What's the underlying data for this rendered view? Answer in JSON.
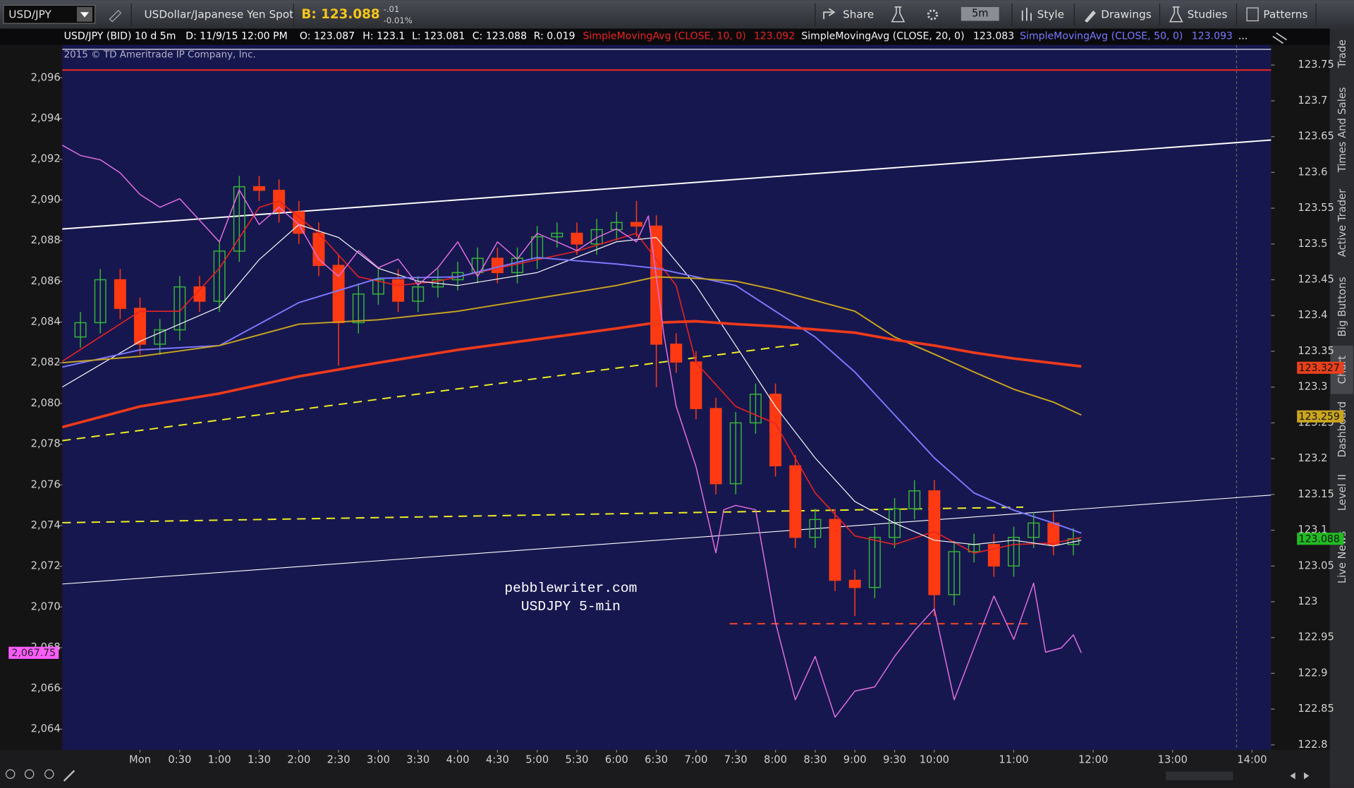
{
  "toolbar": {
    "symbol": "USD/JPY",
    "description": "USDollar/Japanese Yen Spot",
    "bid": "B: 123.088",
    "change": "-.01",
    "change_pct": "-0.01%",
    "timeframe": "5m",
    "buttons": [
      "Share",
      "Style",
      "Drawings",
      "Studies",
      "Patterns"
    ]
  },
  "side_tabs": [
    "Trade",
    "Times And Sales",
    "Active Trader",
    "Big Buttons",
    "Chart",
    "Dashboard",
    "Level II",
    "Live News"
  ],
  "active_tab": 4,
  "chart_data": {
    "type": "candlestick",
    "header": {
      "symbol": "USD/JPY (BID) 10 d 5m",
      "date": "D: 11/9/15 12:00 PM",
      "open": "O: 123.087",
      "high": "H: 123.1",
      "low": "L: 123.081",
      "close": "C: 123.088",
      "range": "R: 0.019",
      "more": "..."
    },
    "copyright": "2015 © TD Ameritrade IP Company, Inc.",
    "annotations": [
      "pebblewriter.com",
      "USDJPY 5-min"
    ],
    "up_color": "#36b536",
    "down_color": "#ff3a12",
    "x": [
      -0.75,
      -0.5,
      -0.25,
      0,
      0.25,
      0.5,
      0.75,
      1,
      1.25,
      1.5,
      1.75,
      2,
      2.25,
      2.5,
      2.75,
      3,
      3.25,
      3.5,
      3.75,
      4,
      4.25,
      4.5,
      4.75,
      5,
      5.25,
      5.5,
      5.75,
      6,
      6.25,
      6.5,
      6.75,
      7,
      7.25,
      7.5,
      7.75,
      8,
      8.25,
      8.5,
      8.75,
      9,
      9.25,
      9.5,
      9.75,
      10,
      10.25,
      10.5,
      10.75,
      11,
      11.25,
      11.5,
      11.75
    ],
    "open": [
      123.37,
      123.39,
      123.45,
      123.41,
      123.36,
      123.38,
      123.44,
      123.42,
      123.49,
      123.58,
      123.575,
      123.545,
      123.515,
      123.47,
      123.39,
      123.43,
      123.45,
      123.42,
      123.44,
      123.45,
      123.46,
      123.48,
      123.46,
      123.48,
      123.51,
      123.515,
      123.5,
      123.52,
      123.53,
      123.525,
      123.36,
      123.335,
      123.27,
      123.165,
      123.25,
      123.29,
      123.19,
      123.09,
      123.115,
      123.03,
      123.02,
      123.09,
      123.13,
      123.155,
      123.01,
      123.07,
      123.08,
      123.05,
      123.09,
      123.11,
      123.08
    ],
    "high": [
      123.405,
      123.465,
      123.465,
      123.425,
      123.395,
      123.455,
      123.455,
      123.505,
      123.595,
      123.595,
      123.59,
      123.56,
      123.53,
      123.485,
      123.445,
      123.465,
      123.465,
      123.455,
      123.465,
      123.475,
      123.495,
      123.495,
      123.495,
      123.525,
      123.53,
      123.53,
      123.535,
      123.545,
      123.56,
      123.54,
      123.375,
      123.35,
      123.285,
      123.265,
      123.305,
      123.305,
      123.205,
      123.13,
      123.13,
      123.045,
      123.105,
      123.145,
      123.17,
      123.17,
      123.085,
      123.095,
      123.095,
      123.105,
      123.125,
      123.125,
      123.103
    ],
    "low": [
      123.355,
      123.375,
      123.395,
      123.345,
      123.345,
      123.365,
      123.405,
      123.405,
      123.475,
      123.56,
      123.53,
      123.5,
      123.455,
      123.33,
      123.375,
      123.415,
      123.405,
      123.405,
      123.425,
      123.435,
      123.445,
      123.445,
      123.445,
      123.465,
      123.495,
      123.485,
      123.485,
      123.505,
      123.51,
      123.3,
      123.32,
      123.255,
      123.15,
      123.15,
      123.235,
      123.175,
      123.075,
      123.075,
      123.015,
      122.98,
      123.005,
      123.075,
      123.115,
      122.98,
      122.995,
      123.055,
      123.035,
      123.035,
      123.075,
      123.065,
      123.065
    ],
    "close": [
      123.39,
      123.45,
      123.41,
      123.36,
      123.38,
      123.44,
      123.42,
      123.49,
      123.58,
      123.575,
      123.545,
      123.515,
      123.47,
      123.39,
      123.43,
      123.45,
      123.42,
      123.44,
      123.45,
      123.46,
      123.48,
      123.46,
      123.48,
      123.51,
      123.515,
      123.5,
      123.52,
      123.53,
      123.525,
      123.36,
      123.335,
      123.27,
      123.165,
      123.25,
      123.29,
      123.19,
      123.09,
      123.115,
      123.03,
      123.02,
      123.09,
      123.13,
      123.155,
      123.01,
      123.07,
      123.08,
      123.05,
      123.09,
      123.11,
      123.08,
      123.088
    ],
    "series": [
      {
        "name": "SimpleMovingAvg (CLOSE, 10, 0)",
        "last": 123.092,
        "color": "#e82222",
        "width": 1.3,
        "x": [
          -0.98,
          0,
          0.5,
          1,
          1.5,
          1.75,
          2.25,
          2.75,
          3.25,
          3.75,
          4.5,
          5.5,
          6.25,
          6.75,
          7,
          7.5,
          8,
          8.5,
          9,
          9.5,
          10,
          10.5,
          11,
          11.5,
          11.85
        ],
        "values": [
          123.336,
          123.406,
          123.406,
          123.466,
          123.551,
          123.56,
          123.515,
          123.454,
          123.442,
          123.448,
          123.466,
          123.49,
          123.515,
          123.442,
          123.334,
          123.273,
          123.249,
          123.152,
          123.092,
          123.08,
          123.098,
          123.068,
          123.08,
          123.082,
          123.09
        ]
      },
      {
        "name": "SimpleMovingAvg (CLOSE, 20, 0)",
        "last": 123.083,
        "color": "#f4f4f4",
        "width": 1,
        "x": [
          -0.98,
          0,
          0.5,
          1,
          1.5,
          2,
          2.5,
          3,
          3.5,
          4,
          5,
          6,
          6.5,
          7,
          7.5,
          8,
          8.5,
          9,
          9.5,
          10,
          10.5,
          11,
          11.5,
          11.85
        ],
        "values": [
          123.3,
          123.364,
          123.388,
          123.412,
          123.478,
          123.527,
          123.509,
          123.466,
          123.448,
          123.442,
          123.46,
          123.503,
          123.509,
          123.442,
          123.358,
          123.273,
          123.201,
          123.14,
          123.11,
          123.086,
          123.08,
          123.086,
          123.078,
          123.086
        ]
      },
      {
        "name": "SimpleMovingAvg (CLOSE, 50, 0)",
        "last": 123.093,
        "color": "#7b78ff",
        "width": 1.6,
        "x": [
          -0.98,
          0,
          1,
          2,
          3,
          4,
          5,
          6,
          6.5,
          7,
          7.5,
          8,
          8.5,
          9,
          9.5,
          10,
          10.5,
          11,
          11.5,
          11.85
        ],
        "values": [
          123.328,
          123.352,
          123.358,
          123.418,
          123.452,
          123.454,
          123.481,
          123.472,
          123.466,
          123.454,
          123.442,
          123.406,
          123.37,
          123.321,
          123.261,
          123.201,
          123.152,
          123.128,
          123.11,
          123.096
        ]
      },
      {
        "color": "#c9a51e",
        "width": 1.6,
        "x": [
          -0.98,
          0,
          1,
          2,
          3,
          4,
          5,
          6,
          6.5,
          7,
          7.5,
          8,
          9,
          9.5,
          10,
          10.5,
          11,
          11.5,
          11.85
        ],
        "values": [
          123.334,
          123.343,
          123.358,
          123.388,
          123.394,
          123.406,
          123.424,
          123.442,
          123.454,
          123.452,
          123.448,
          123.436,
          123.406,
          123.37,
          123.346,
          123.321,
          123.297,
          123.279,
          123.261
        ]
      },
      {
        "color": "#f03a1a",
        "width": 3,
        "x": [
          -0.98,
          0,
          1,
          2,
          3,
          4,
          5,
          6,
          6.5,
          7,
          7.5,
          8,
          9,
          9.5,
          10,
          10.5,
          11,
          11.85
        ],
        "values": [
          123.244,
          123.273,
          123.291,
          123.315,
          123.334,
          123.352,
          123.367,
          123.382,
          123.39,
          123.392,
          123.388,
          123.385,
          123.376,
          123.366,
          123.358,
          123.348,
          123.34,
          123.329
        ]
      },
      {
        "color": "#e070e0",
        "width": 1.2,
        "axis": "y2",
        "x": [
          -0.98,
          -0.75,
          -0.5,
          -0.25,
          0,
          0.25,
          0.5,
          0.75,
          1,
          1.25,
          1.5,
          1.75,
          2,
          2.25,
          2.5,
          2.75,
          3,
          3.25,
          3.5,
          3.75,
          4,
          4.25,
          4.5,
          4.75,
          5,
          5.25,
          5.5,
          5.75,
          6,
          6.25,
          6.4,
          6.6,
          6.75,
          7,
          7.25,
          7.35,
          7.5,
          7.75,
          8,
          8.25,
          8.5,
          8.75,
          9,
          9.25,
          9.5,
          9.75,
          10,
          10.25,
          10.5,
          10.75,
          11,
          11.25,
          11.4,
          11.6,
          11.75,
          11.85
        ],
        "values": [
          2092.69,
          2092.18,
          2091.97,
          2091.33,
          2090.27,
          2089.64,
          2090.06,
          2089.0,
          2087.94,
          2090.49,
          2088.79,
          2089.64,
          2088.79,
          2087.09,
          2086.24,
          2087.51,
          2086.67,
          2087.09,
          2085.82,
          2086.67,
          2087.94,
          2086.24,
          2087.94,
          2087.09,
          2088.36,
          2087.94,
          2087.51,
          2088.15,
          2088.58,
          2087.94,
          2089.21,
          2083.27,
          2079.87,
          2076.9,
          2072.66,
          2074.78,
          2074.99,
          2074.78,
          2069.26,
          2065.44,
          2067.57,
          2064.59,
          2065.87,
          2066.08,
          2067.57,
          2068.84,
          2069.9,
          2065.44,
          2067.99,
          2070.54,
          2068.41,
          2071.17,
          2067.78,
          2067.99,
          2068.63,
          2067.75
        ]
      }
    ],
    "xlim": [
      -0.98,
      14.24
    ],
    "xticks": [
      {
        "value": 0,
        "label": "Mon"
      },
      {
        "value": 0.5,
        "label": "0:30"
      },
      {
        "value": 1,
        "label": "1:00"
      },
      {
        "value": 1.5,
        "label": "1:30"
      },
      {
        "value": 2,
        "label": "2:00"
      },
      {
        "value": 2.5,
        "label": "2:30"
      },
      {
        "value": 3,
        "label": "3:00"
      },
      {
        "value": 3.5,
        "label": "3:30"
      },
      {
        "value": 4,
        "label": "4:00"
      },
      {
        "value": 4.5,
        "label": "4:30"
      },
      {
        "value": 5,
        "label": "5:00"
      },
      {
        "value": 5.5,
        "label": "5:30"
      },
      {
        "value": 6,
        "label": "6:00"
      },
      {
        "value": 6.5,
        "label": "6:30"
      },
      {
        "value": 7,
        "label": "7:00"
      },
      {
        "value": 7.5,
        "label": "7:30"
      },
      {
        "value": 8,
        "label": "8:00"
      },
      {
        "value": 8.5,
        "label": "8:30"
      },
      {
        "value": 9,
        "label": "9:00"
      },
      {
        "value": 9.5,
        "label": "9:30"
      },
      {
        "value": 10,
        "label": "10:00"
      },
      {
        "value": 11,
        "label": "11:00"
      },
      {
        "value": 12,
        "label": "12:00"
      },
      {
        "value": 13,
        "label": "13:00"
      },
      {
        "value": 14,
        "label": "14:00"
      }
    ],
    "ylim": [
      122.793,
      123.778
    ],
    "yticks": [
      123.75,
      123.7,
      123.65,
      123.6,
      123.55,
      123.5,
      123.45,
      123.4,
      123.35,
      123.3,
      123.25,
      123.2,
      123.15,
      123.1,
      123.05,
      123,
      122.95,
      122.9,
      122.85,
      122.8
    ],
    "y2lim": [
      2062.98,
      2097.61
    ],
    "y2ticks": [
      {
        "value": 2096,
        "label": "2,096"
      },
      {
        "value": 2094,
        "label": "2,094"
      },
      {
        "value": 2092,
        "label": "2,092"
      },
      {
        "value": 2090,
        "label": "2,090"
      },
      {
        "value": 2088,
        "label": "2,088"
      },
      {
        "value": 2086,
        "label": "2,086"
      },
      {
        "value": 2084,
        "label": "2,084"
      },
      {
        "value": 2082,
        "label": "2,082"
      },
      {
        "value": 2080,
        "label": "2,080"
      },
      {
        "value": 2078,
        "label": "2,078"
      },
      {
        "value": 2076,
        "label": "2,076"
      },
      {
        "value": 2074,
        "label": "2,074"
      },
      {
        "value": 2072,
        "label": "2,072"
      },
      {
        "value": 2070,
        "label": "2,070"
      },
      {
        "value": 2068,
        "label": "2,068"
      },
      {
        "value": 2066,
        "label": "2,066"
      },
      {
        "value": 2064,
        "label": "2,064"
      }
    ],
    "price_tags": [
      {
        "value": 123.327,
        "color": "#e8401c"
      },
      {
        "value": 123.259,
        "color": "#c9a51e"
      },
      {
        "value": 123.088,
        "color": "#22bb22"
      }
    ],
    "y2_tags": [
      {
        "value": 2067.75,
        "label": "2,067.75",
        "color": "#ff5cff"
      }
    ],
    "grid": false
  }
}
